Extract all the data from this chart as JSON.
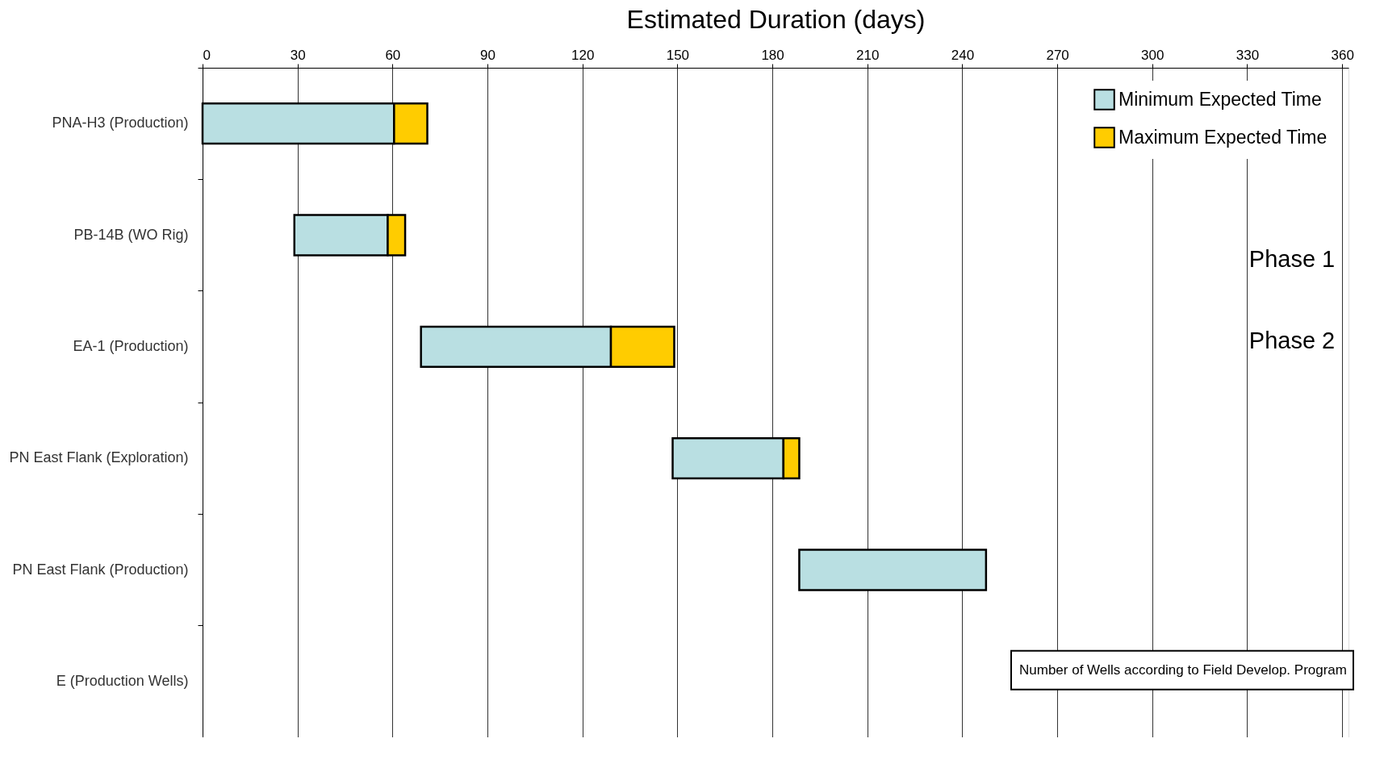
{
  "chart_data": {
    "type": "bar",
    "orientation": "horizontal",
    "xlabel": "Estimated Duration (days)",
    "categories": [
      "PNA-H3 (Production)",
      "PB-14B (WO Rig)",
      "EA-1 (Production)",
      "PN East Flank (Exploration)",
      "PN East Flank (Production)",
      "E (Production Wells)"
    ],
    "series": [
      {
        "name": "Minimum Expected Time",
        "color": "#b9dfe2",
        "base": [
          0,
          29,
          69,
          148.5,
          188.5,
          null
        ],
        "values": [
          60.5,
          29.5,
          60,
          35,
          59,
          null
        ]
      },
      {
        "name": "Maximum Expected Time",
        "color": "#ffcc00",
        "base": [
          60.5,
          58.5,
          129,
          183.5,
          null,
          null
        ],
        "values": [
          10.5,
          5.5,
          20,
          5,
          null,
          null
        ]
      }
    ],
    "xlim": [
      0,
      362
    ],
    "xticks": [
      0,
      30,
      60,
      90,
      120,
      150,
      180,
      210,
      240,
      270,
      300,
      330,
      360
    ],
    "grid": "x",
    "legend": "top right",
    "annotations": [
      "Phase 1",
      "Phase 2",
      "Number of Wells according to Field Develop. Program"
    ]
  }
}
